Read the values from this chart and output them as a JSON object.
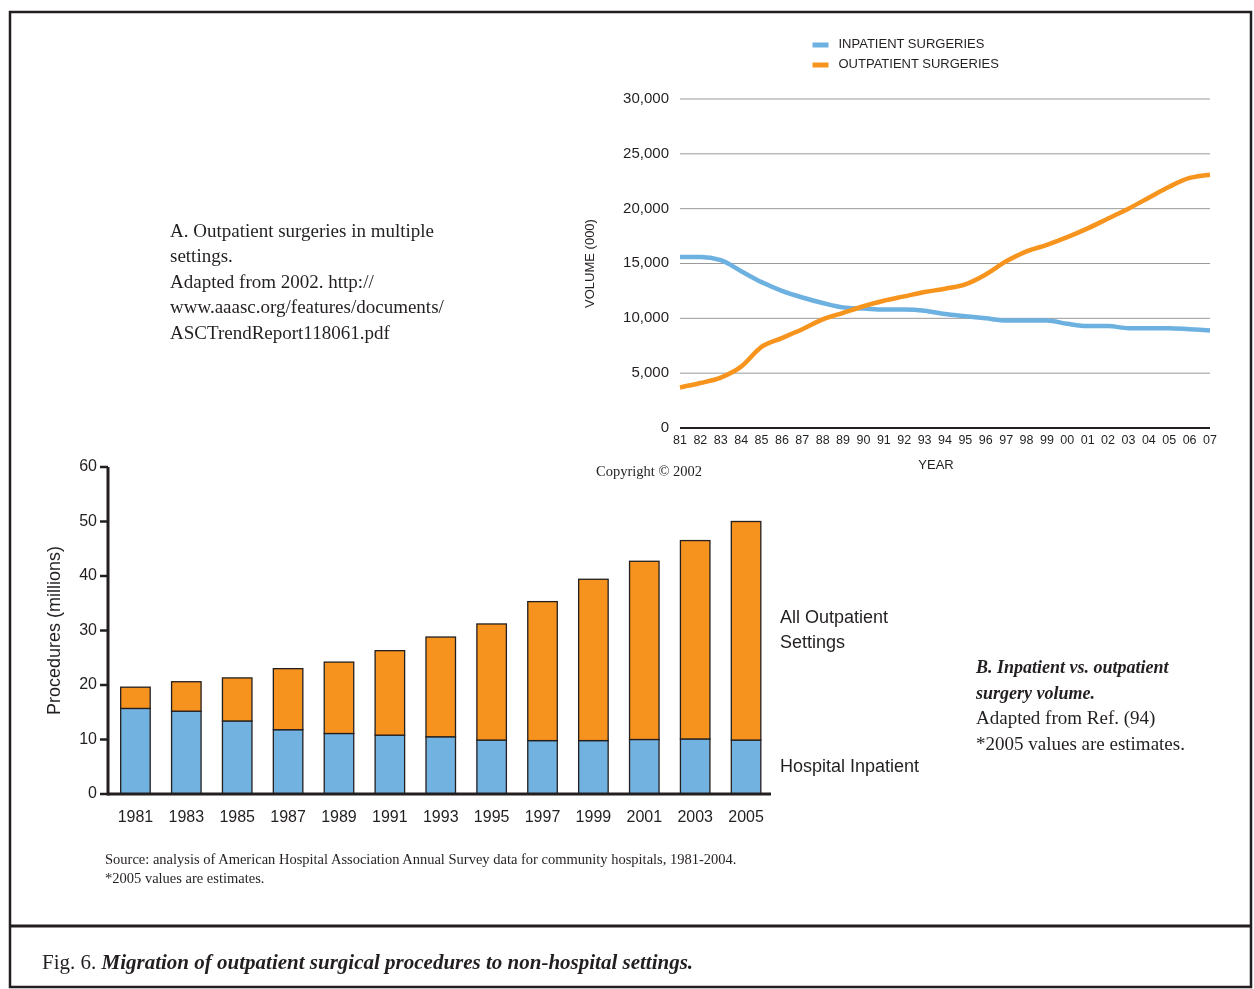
{
  "chart_data": [
    {
      "type": "line",
      "categories": [
        "81",
        "82",
        "83",
        "84",
        "85",
        "86",
        "87",
        "88",
        "89",
        "90",
        "91",
        "92",
        "93",
        "94",
        "95",
        "96",
        "97",
        "98",
        "99",
        "00",
        "01",
        "02",
        "03",
        "04",
        "05",
        "06",
        "07"
      ],
      "series": [
        {
          "name": "INPATIENT SURGERIES",
          "color": "#6db1e1",
          "values": [
            15600,
            15600,
            15300,
            14300,
            13300,
            12500,
            11900,
            11400,
            11000,
            10900,
            10800,
            10800,
            10700,
            10400,
            10200,
            10000,
            9800,
            9800,
            9800,
            9500,
            9300,
            9300,
            9100,
            9100,
            9100,
            9000,
            8900
          ]
        },
        {
          "name": "OUTPATIENT SURGERIES",
          "color": "#f7941e",
          "values": [
            3700,
            4100,
            4600,
            5600,
            7400,
            8200,
            9000,
            9900,
            10500,
            11100,
            11600,
            12000,
            12400,
            12700,
            13100,
            14000,
            15200,
            16100,
            16700,
            17400,
            18200,
            19100,
            20000,
            21000,
            22000,
            22800,
            23100
          ]
        }
      ],
      "xlabel": "YEAR",
      "ylabel": "VOLUME (000)",
      "ylim": [
        0,
        30000
      ],
      "yticks": [
        0,
        {
          "value": 5000,
          "label": "5,000"
        },
        {
          "value": 10000,
          "label": "10,000"
        },
        {
          "value": 15000,
          "label": "15,000"
        },
        {
          "value": 20000,
          "label": "20,000"
        },
        {
          "value": 25000,
          "label": "25,000"
        },
        {
          "value": 30000,
          "label": "30,000"
        }
      ],
      "grid": "y",
      "legend": "top",
      "annotations": [
        "A. Outpatient surgeries in multiple settings.",
        "Adapted from 2002. http://www.aaasc.org/features/documents/ASCTrendReport118061.pdf",
        "Copyright © 2002"
      ]
    },
    {
      "type": "bar",
      "stacked": true,
      "categories": [
        "1981",
        "1983",
        "1985",
        "1987",
        "1989",
        "1991",
        "1993",
        "1995",
        "1997",
        "1999",
        "2001",
        "2003",
        "2005"
      ],
      "series": [
        {
          "name": "Hospital Inpatient",
          "color": "#72b2e0",
          "values": [
            15.7,
            15.2,
            13.4,
            11.8,
            11.1,
            10.8,
            10.5,
            9.9,
            9.8,
            9.8,
            10.0,
            10.1,
            9.9
          ]
        },
        {
          "name": "All Outpatient Settings",
          "color": "#f6931e",
          "values": [
            3.9,
            5.4,
            7.9,
            11.2,
            13.1,
            15.5,
            18.3,
            21.3,
            25.5,
            29.6,
            32.7,
            36.4,
            40.1
          ]
        }
      ],
      "ylabel": "Procedures (millions)",
      "ylim": [
        0,
        60
      ],
      "yticks": [
        0,
        10,
        20,
        30,
        40,
        50,
        60
      ],
      "annotations": [
        "B. Inpatient vs. outpatient surgery volume.",
        "Adapted from Ref. (94)",
        "*2005 values are estimates.",
        "Source: analysis of American Hospital Association Annual Survey data for community hospitals, 1981-2004.",
        "*2005 values are estimates.",
        "Fig. 6. Migration of outpatient surgical procedures to non-hospital settings."
      ]
    }
  ]
}
